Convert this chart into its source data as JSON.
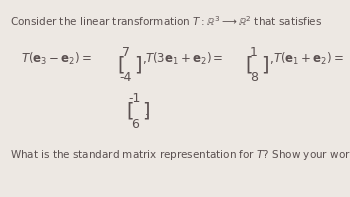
{
  "background_color": "#ede8e3",
  "text_color": "#5a5050",
  "title": "Consider the linear transformation $T: \\mathbb{R}^3 \\longrightarrow \\mathbb{R}^2$ that satisfies",
  "footer": "What is the standard matrix representation for $T$? Show your work.",
  "font_size_title": 7.5,
  "font_size_eq": 8.5,
  "font_size_footer": 7.5,
  "font_size_matrix": 9.0
}
